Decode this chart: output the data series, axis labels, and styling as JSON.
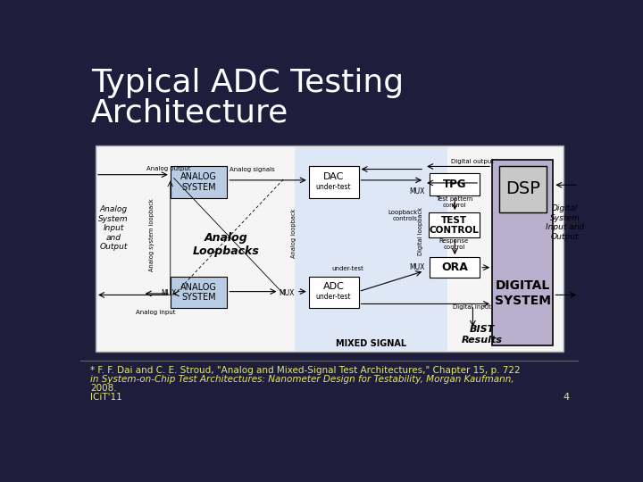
{
  "title_line1": "Typical ADC Testing",
  "title_line2": "Architecture",
  "title_color": "#ffffff",
  "title_fontsize": 26,
  "bg_color": "#1e1e3c",
  "footnote_line1": "* F. F. Dai and C. E. Stroud, \"Analog and Mixed-Signal Test Architectures,\" Chapter 15, p. 722",
  "footnote_line2": "in System-on-Chip Test Architectures: Nanometer Design for Testability, Morgan Kaufmann,",
  "footnote_line3": "2008.",
  "footnote_color": "#e8e870",
  "footnote_fontsize": 7.5,
  "slide_number": "4",
  "course_label": "ICiT'11",
  "analog_sys_color": "#b8cce4",
  "digital_sys_color": "#b8b0cc",
  "dsp_color": "#c8c8c8",
  "mixed_signal_color": "#dce6f5",
  "tpg_ora_color": "#ffffff",
  "diagram_bg": "#f5f5f5"
}
